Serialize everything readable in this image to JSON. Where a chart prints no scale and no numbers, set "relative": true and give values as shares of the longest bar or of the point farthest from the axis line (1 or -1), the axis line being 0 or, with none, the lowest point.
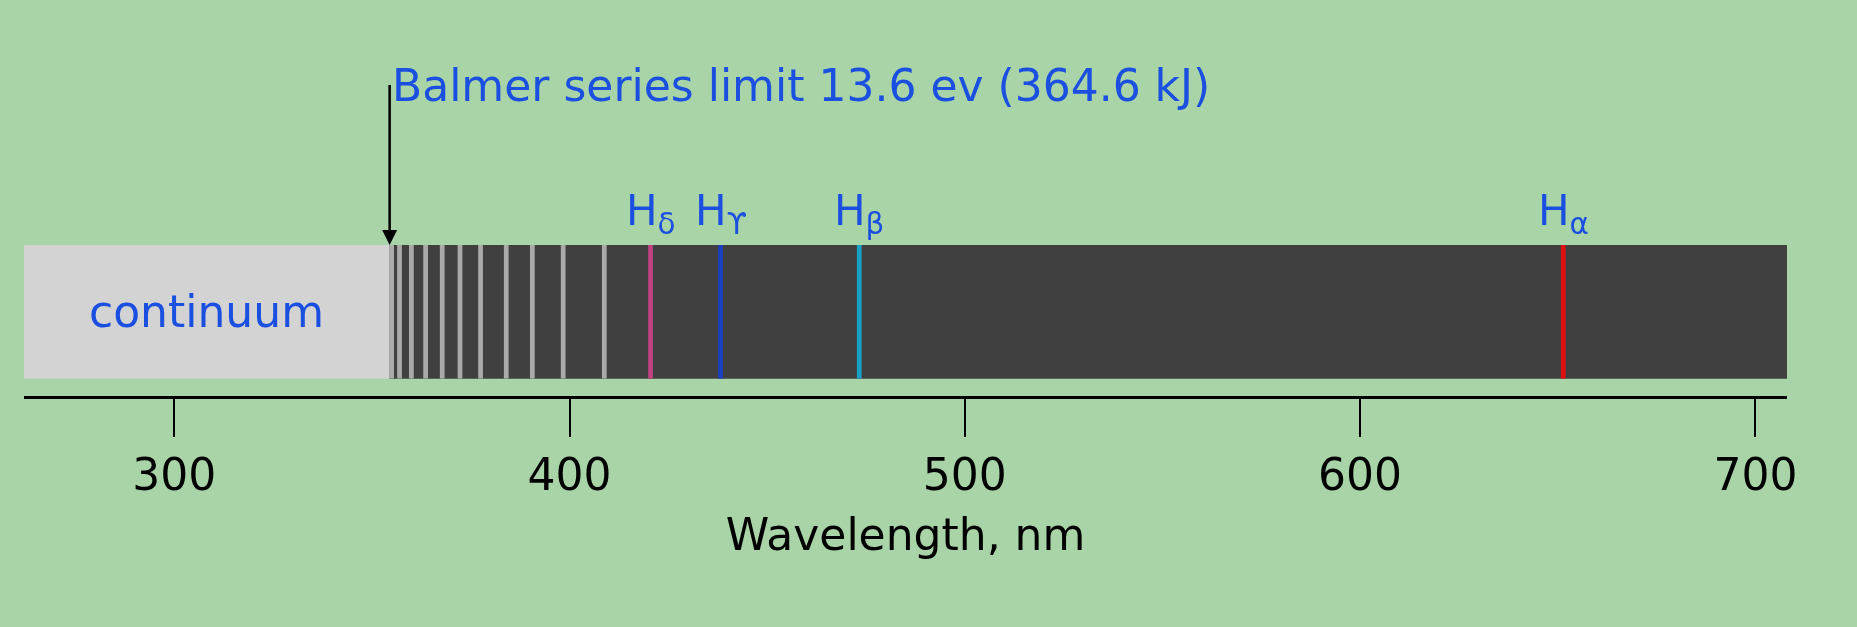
{
  "chart_data": {
    "type": "bar",
    "relative": true,
    "xlabel": "Wavelength, nm",
    "xlim": [
      262,
      708
    ],
    "xticks": [
      300,
      400,
      500,
      600,
      700
    ],
    "series": [
      {
        "color": "#aaaaaa",
        "x": [
          355,
          357,
          360,
          363.6,
          367.8,
          372.3,
          377.5,
          384,
          390.6,
          398.4,
          408.8
        ],
        "values": [
          1,
          1,
          1,
          1,
          1,
          1,
          1,
          1,
          1,
          1,
          1
        ]
      },
      {
        "name": "H$_{δ}$",
        "color": "#c04080",
        "x": [
          420.5
        ],
        "values": [
          1
        ]
      },
      {
        "name": "H$_{ϒ}$",
        "color": "#1a3fc0",
        "x": [
          438.2
        ],
        "values": [
          1
        ]
      },
      {
        "name": "H$_{β}$",
        "color": "#1aa0c8",
        "x": [
          473.3
        ],
        "values": [
          1
        ]
      },
      {
        "name": "H$_{α}$",
        "color": "#e01010",
        "x": [
          651.4
        ],
        "values": [
          1
        ]
      }
    ],
    "bands": [
      {
        "axis": "x",
        "from": 262,
        "to": 354.5,
        "label": "continuum",
        "color": "#d3d3d3"
      },
      {
        "axis": "x",
        "from": 354.5,
        "to": 708,
        "color": "#404040"
      }
    ],
    "annotations": [
      "Balmer series limit 13.6 ev (364.6 kJ)"
    ]
  }
}
